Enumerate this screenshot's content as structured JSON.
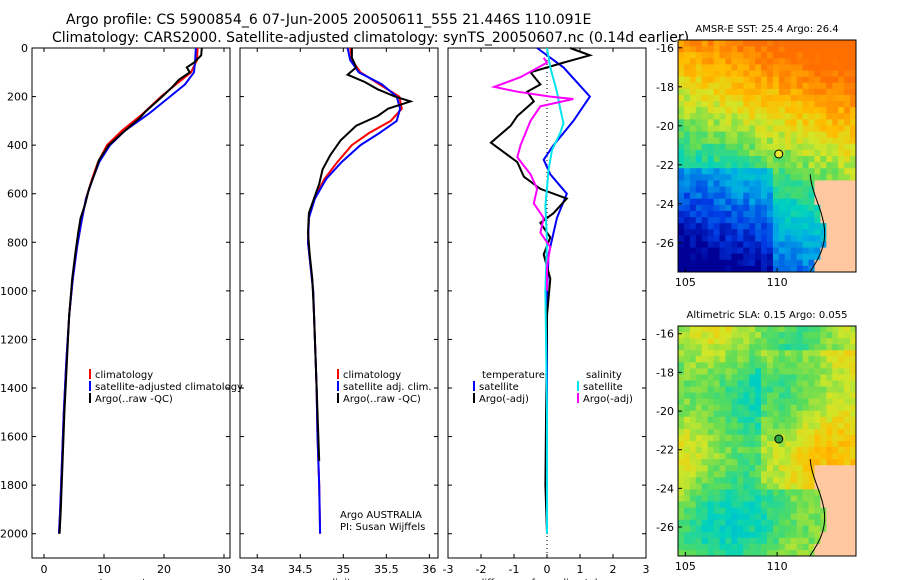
{
  "figure": {
    "title_line1": "Argo profile: CS 5900854_6 07-Jun-2005 20050611_555 21.446S 110.091E",
    "title_line2": "Climatology: CARS2000. Satellite-adjusted climatology: synTS_20050607.nc (0.14d earlier)",
    "colors": {
      "climatology": "#ff0000",
      "satellite": "#0000ff",
      "argo": "#000000",
      "salinity": "#ff00ff",
      "salinity_sat": "#00e5ee"
    }
  },
  "chart_data": [
    {
      "type": "line",
      "name": "temperature-profile",
      "xlabel": "temperature",
      "ylabel": "",
      "xlim": [
        -2,
        31
      ],
      "ylim": [
        2100,
        0
      ],
      "xticks": [
        0,
        10,
        20,
        30
      ],
      "yticks": [
        0,
        200,
        400,
        600,
        800,
        1000,
        1200,
        1400,
        1600,
        1800,
        2000
      ],
      "legend": [
        "climatology",
        "satellite-adjusted climatology",
        "Argo(..raw -QC)"
      ],
      "legend_position": "lower-right",
      "series": [
        {
          "name": "climatology",
          "color": "#ff0000",
          "points": [
            [
              25.6,
              0
            ],
            [
              25.5,
              50
            ],
            [
              24.5,
              100
            ],
            [
              22,
              150
            ],
            [
              19.5,
              200
            ],
            [
              16.5,
              270
            ],
            [
              13,
              340
            ],
            [
              10.5,
              400
            ],
            [
              9,
              470
            ],
            [
              8,
              540
            ],
            [
              7,
              620
            ],
            [
              6.2,
              720
            ],
            [
              5.5,
              820
            ],
            [
              4.8,
              950
            ],
            [
              4.2,
              1100
            ],
            [
              3.7,
              1300
            ],
            [
              3.3,
              1500
            ],
            [
              3,
              1700
            ],
            [
              2.7,
              1900
            ],
            [
              2.5,
              2000
            ]
          ]
        },
        {
          "name": "satellite",
          "color": "#0000ff",
          "points": [
            [
              25.3,
              0
            ],
            [
              25.2,
              50
            ],
            [
              25,
              100
            ],
            [
              23.5,
              150
            ],
            [
              21,
              200
            ],
            [
              17.5,
              270
            ],
            [
              13.5,
              340
            ],
            [
              11,
              400
            ],
            [
              9.2,
              470
            ],
            [
              8.1,
              540
            ],
            [
              7,
              620
            ],
            [
              6.2,
              720
            ],
            [
              5.5,
              820
            ],
            [
              4.8,
              950
            ],
            [
              4.2,
              1100
            ],
            [
              3.7,
              1300
            ],
            [
              3.3,
              1500
            ],
            [
              3,
              1700
            ],
            [
              2.7,
              1900
            ],
            [
              2.5,
              2000
            ]
          ]
        },
        {
          "name": "argo",
          "color": "#000000",
          "points": [
            [
              26.3,
              0
            ],
            [
              26.2,
              30
            ],
            [
              25,
              60
            ],
            [
              23.8,
              80
            ],
            [
              24.3,
              100
            ],
            [
              22.5,
              130
            ],
            [
              21.4,
              160
            ],
            [
              19.7,
              200
            ],
            [
              17,
              260
            ],
            [
              15.9,
              290
            ],
            [
              13.5,
              340
            ],
            [
              10.8,
              400
            ],
            [
              9.2,
              460
            ],
            [
              8.4,
              520
            ],
            [
              7.5,
              580
            ],
            [
              6.9,
              640
            ],
            [
              6.1,
              700
            ],
            [
              5.7,
              760
            ],
            [
              5.2,
              850
            ],
            [
              4.7,
              950
            ],
            [
              4.2,
              1100
            ],
            [
              3.8,
              1300
            ],
            [
              3.4,
              1500
            ],
            [
              3.1,
              1700
            ],
            [
              2.8,
              1900
            ],
            [
              2.6,
              2000
            ]
          ]
        }
      ]
    },
    {
      "type": "line",
      "name": "salinity-profile",
      "xlabel": "salinity",
      "ylabel": "",
      "xlim": [
        33.8,
        36.1
      ],
      "ylim": [
        2100,
        0
      ],
      "xticks": [
        34,
        34.5,
        35,
        35.5,
        36
      ],
      "yticks": [
        0,
        200,
        400,
        600,
        800,
        1000,
        1200,
        1400,
        1600,
        1800,
        2000
      ],
      "legend": [
        "climatology",
        "satellite adj. clim.",
        "Argo(..raw -QC)"
      ],
      "legend_position": "lower-right",
      "annotation": [
        "Argo AUSTRALIA",
        "PI: Susan Wijffels"
      ],
      "series": [
        {
          "name": "climatology",
          "color": "#ff0000",
          "points": [
            [
              35.08,
              0
            ],
            [
              35.1,
              50
            ],
            [
              35.2,
              100
            ],
            [
              35.42,
              150
            ],
            [
              35.65,
              200
            ],
            [
              35.68,
              250
            ],
            [
              35.55,
              300
            ],
            [
              35.3,
              350
            ],
            [
              35.1,
              400
            ],
            [
              34.93,
              470
            ],
            [
              34.78,
              540
            ],
            [
              34.66,
              620
            ],
            [
              34.6,
              700
            ],
            [
              34.59,
              800
            ],
            [
              34.62,
              900
            ],
            [
              34.65,
              1000
            ],
            [
              34.67,
              1200
            ],
            [
              34.69,
              1400
            ],
            [
              34.7,
              1600
            ],
            [
              34.72,
              1800
            ],
            [
              34.73,
              2000
            ]
          ]
        },
        {
          "name": "satellite",
          "color": "#0000ff",
          "points": [
            [
              35.05,
              0
            ],
            [
              35.08,
              50
            ],
            [
              35.18,
              100
            ],
            [
              35.45,
              150
            ],
            [
              35.62,
              200
            ],
            [
              35.66,
              250
            ],
            [
              35.62,
              300
            ],
            [
              35.42,
              350
            ],
            [
              35.2,
              400
            ],
            [
              34.98,
              470
            ],
            [
              34.8,
              540
            ],
            [
              34.67,
              620
            ],
            [
              34.6,
              700
            ],
            [
              34.59,
              800
            ],
            [
              34.62,
              900
            ],
            [
              34.65,
              1000
            ],
            [
              34.67,
              1200
            ],
            [
              34.69,
              1400
            ],
            [
              34.7,
              1600
            ],
            [
              34.72,
              1800
            ],
            [
              34.73,
              2000
            ]
          ]
        },
        {
          "name": "argo",
          "color": "#000000",
          "points": [
            [
              35.1,
              0
            ],
            [
              35.1,
              40
            ],
            [
              35.15,
              80
            ],
            [
              35.05,
              110
            ],
            [
              35.25,
              140
            ],
            [
              35.4,
              170
            ],
            [
              35.6,
              200
            ],
            [
              35.78,
              220
            ],
            [
              35.52,
              250
            ],
            [
              35.4,
              280
            ],
            [
              35.15,
              320
            ],
            [
              34.97,
              380
            ],
            [
              34.85,
              440
            ],
            [
              34.76,
              500
            ],
            [
              34.72,
              560
            ],
            [
              34.66,
              620
            ],
            [
              34.6,
              680
            ],
            [
              34.59,
              760
            ],
            [
              34.61,
              850
            ],
            [
              34.64,
              950
            ],
            [
              34.66,
              1100
            ],
            [
              34.68,
              1300
            ],
            [
              34.7,
              1500
            ],
            [
              34.72,
              1700
            ]
          ]
        }
      ]
    },
    {
      "type": "line",
      "name": "difference-profile",
      "xlabel": "difference from climatology",
      "ylabel": "",
      "xlim": [
        -3,
        3
      ],
      "ylim": [
        2100,
        0
      ],
      "xticks": [
        -3,
        -2,
        -1,
        0,
        1,
        2,
        3
      ],
      "yticks": [
        0,
        200,
        400,
        600,
        800,
        1000,
        1200,
        1400,
        1600,
        1800,
        2000
      ],
      "legend": [
        "temperature",
        "satellite",
        "Argo(-adj)",
        "salinity",
        "satellite",
        "Argo(-adj)"
      ],
      "legend_position": "lower-right",
      "series": [
        {
          "name": "temperature satellite",
          "color": "#0000ff",
          "points": [
            [
              -0.3,
              0
            ],
            [
              0.5,
              80
            ],
            [
              1.3,
              200
            ],
            [
              0.8,
              300
            ],
            [
              0.2,
              400
            ],
            [
              -0.1,
              460
            ],
            [
              0.1,
              520
            ],
            [
              0.6,
              600
            ],
            [
              0.3,
              700
            ],
            [
              0.05,
              850
            ],
            [
              0,
              1000
            ],
            [
              0,
              1500
            ],
            [
              0,
              2000
            ]
          ]
        },
        {
          "name": "temperature argo",
          "color": "#000000",
          "points": [
            [
              0.7,
              0
            ],
            [
              1.3,
              30
            ],
            [
              0.5,
              60
            ],
            [
              -0.5,
              100
            ],
            [
              -0.2,
              150
            ],
            [
              -0.6,
              180
            ],
            [
              -0.4,
              220
            ],
            [
              -0.9,
              280
            ],
            [
              -1.1,
              320
            ],
            [
              -1.7,
              390
            ],
            [
              -0.9,
              470
            ],
            [
              -0.7,
              530
            ],
            [
              -0.2,
              580
            ],
            [
              0.6,
              620
            ],
            [
              0.2,
              680
            ],
            [
              -0.2,
              720
            ],
            [
              0.1,
              780
            ],
            [
              -0.1,
              850
            ],
            [
              0.1,
              950
            ],
            [
              0,
              1100
            ],
            [
              -0.05,
              1800
            ],
            [
              0,
              2000
            ]
          ]
        },
        {
          "name": "salinity satellite",
          "color": "#00e5ee",
          "points": [
            [
              0,
              0
            ],
            [
              0.1,
              80
            ],
            [
              0.3,
              180
            ],
            [
              0.4,
              250
            ],
            [
              0.5,
              310
            ],
            [
              0.4,
              350
            ],
            [
              0.15,
              420
            ],
            [
              0.05,
              500
            ],
            [
              -0.05,
              650
            ],
            [
              0,
              800
            ],
            [
              -0.05,
              1000
            ],
            [
              0,
              1500
            ],
            [
              0,
              2000
            ]
          ]
        },
        {
          "name": "salinity argo",
          "color": "#ff00ff",
          "points": [
            [
              -0.1,
              40
            ],
            [
              0,
              60
            ],
            [
              -0.8,
              120
            ],
            [
              -1.6,
              160
            ],
            [
              -0.9,
              180
            ],
            [
              0.1,
              200
            ],
            [
              0.8,
              210
            ],
            [
              -0.2,
              240
            ],
            [
              -0.5,
              300
            ],
            [
              -0.8,
              400
            ],
            [
              -0.9,
              450
            ],
            [
              -0.5,
              520
            ],
            [
              -0.3,
              580
            ],
            [
              -0.4,
              640
            ],
            [
              -0.1,
              700
            ],
            [
              -0.2,
              760
            ],
            [
              0.1,
              820
            ],
            [
              0,
              900
            ],
            [
              0,
              1000
            ]
          ]
        }
      ]
    }
  ],
  "maps": {
    "sst": {
      "title": "AMSR-E SST: 25.4 Argo: 26.4",
      "yticks": [
        "-16",
        "-18",
        "-20",
        "-22",
        "-24",
        "-26"
      ],
      "xticks": [
        "105",
        "110"
      ]
    },
    "sla": {
      "title": "Altimetric SLA: 0.15 Argo: 0.055",
      "yticks": [
        "-16",
        "-18",
        "-20",
        "-22",
        "-24",
        "-26"
      ],
      "xticks": [
        "105",
        "110"
      ]
    },
    "profile_position": {
      "lon": 110.091,
      "lat": -21.446
    }
  }
}
